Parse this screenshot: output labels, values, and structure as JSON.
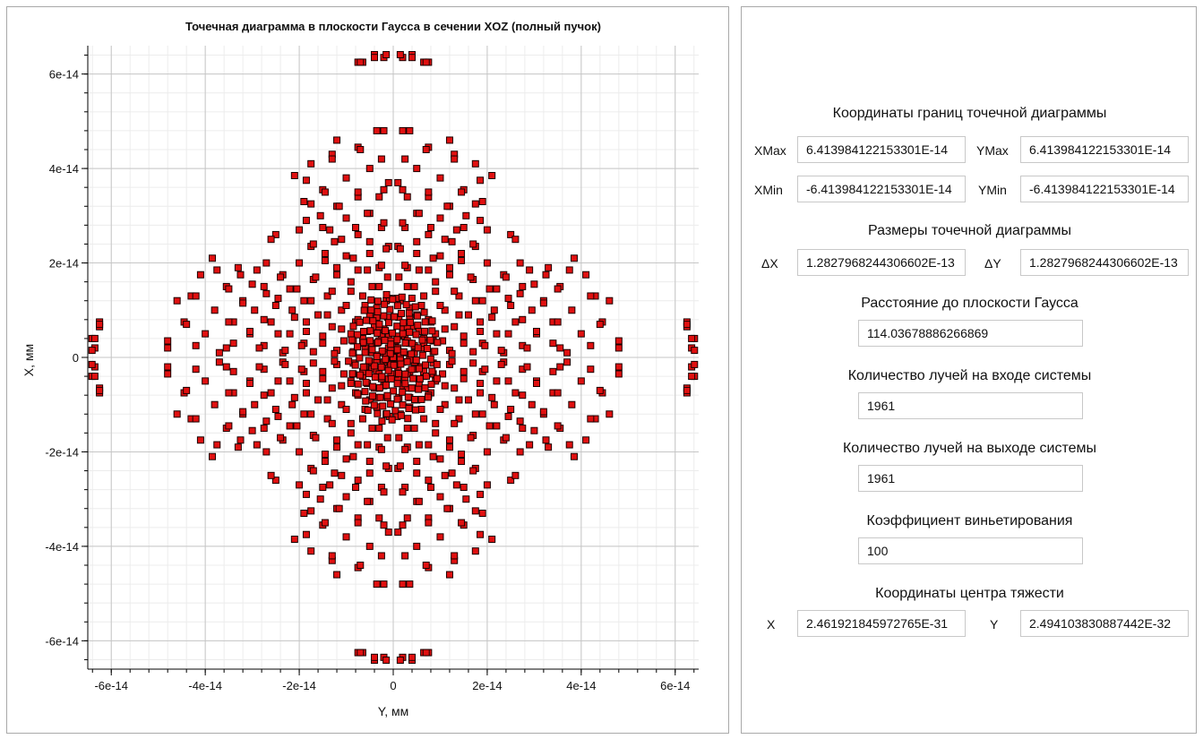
{
  "chart_data": {
    "type": "scatter",
    "title": "Точечная диаграмма в плоскости Гаусса в сечении XOZ (полный пучок)",
    "xlabel": "Y, мм",
    "ylabel": "X, мм",
    "xlim": [
      -6.5e-14,
      6.5e-14
    ],
    "ylim": [
      -6.6e-14,
      6.6e-14
    ],
    "xticks": [
      -6e-14,
      -4e-14,
      -2e-14,
      0,
      2e-14,
      4e-14,
      6e-14
    ],
    "xtick_labels": [
      "-6e-14",
      "-4e-14",
      "-2e-14",
      "0",
      "2e-14",
      "4e-14",
      "6e-14"
    ],
    "yticks": [
      6e-14,
      4e-14,
      2e-14,
      0,
      -2e-14,
      -4e-14,
      -6e-14
    ],
    "ytick_labels": [
      "6e-14",
      "4e-14",
      "2e-14",
      "0",
      "-2e-14",
      "-4e-14",
      "-6e-14"
    ],
    "grid": true,
    "marker": "square",
    "marker_fill": "#e01010",
    "marker_stroke": "#1a0000",
    "symmetry": "four-fold",
    "series": [
      {
        "name": "",
        "points": [
          [
            4e-15,
            6.41e-14
          ],
          [
            7.5e-15,
            6.25e-14
          ],
          [
            -2e-15,
            6.35e-14
          ],
          [
            -6.5e-15,
            6.25e-14
          ],
          [
            3.5e-15,
            4.8e-14
          ],
          [
            7.5e-15,
            4.45e-14
          ],
          [
            1.3e-14,
            4.3e-14
          ],
          [
            1.75e-14,
            4.1e-14
          ],
          [
            2.1e-14,
            3.85e-14
          ],
          [
            5e-15,
            4e-14
          ],
          [
            1e-14,
            3.8e-14
          ],
          [
            1.5e-14,
            3.55e-14
          ],
          [
            2e-15,
            3.55e-14
          ],
          [
            7.5e-15,
            3.4e-14
          ],
          [
            1.2e-14,
            3.2e-14
          ],
          [
            1.9e-14,
            3.3e-14
          ],
          [
            5e-15,
            3.05e-14
          ],
          [
            1e-14,
            2.95e-14
          ],
          [
            1.5e-14,
            2.75e-14
          ],
          [
            2e-14,
            2.7e-14
          ],
          [
            2.5e-14,
            2.6e-14
          ],
          [
            2.5e-15,
            2.75e-14
          ],
          [
            7.5e-15,
            2.6e-14
          ],
          [
            1.25e-14,
            2.45e-14
          ],
          [
            1.75e-14,
            2.35e-14
          ],
          [
            1e-15,
            2.35e-14
          ],
          [
            5e-15,
            2.2e-14
          ],
          [
            1e-14,
            2.15e-14
          ],
          [
            1.45e-14,
            2.05e-14
          ],
          [
            2e-14,
            2e-14
          ],
          [
            3e-15,
            1.9e-14
          ],
          [
            7.5e-15,
            1.85e-14
          ],
          [
            1.2e-14,
            1.75e-14
          ],
          [
            1.7e-14,
            1.65e-14
          ],
          [
            2.4e-14,
            1.7e-14
          ],
          [
            2.9e-14,
            1.85e-14
          ],
          [
            3.25e-14,
            1.75e-14
          ],
          [
            3.75e-14,
            1.85e-14
          ],
          [
            3e-14,
            1.55e-14
          ],
          [
            3.5e-14,
            1.45e-14
          ],
          [
            2.2e-14,
            1.45e-14
          ],
          [
            2.7e-14,
            1.35e-14
          ],
          [
            4.2e-14,
            1.3e-14
          ],
          [
            4.6e-14,
            1.2e-14
          ],
          [
            3.2e-14,
            1.15e-14
          ],
          [
            2.5e-14,
            1.1e-14
          ],
          [
            1.9e-14,
            1.2e-14
          ],
          [
            1.4e-14,
            1.3e-14
          ],
          [
            9e-15,
            1.4e-14
          ],
          [
            4.5e-15,
            1.5e-14
          ],
          [
            1.5e-15,
            1.2e-14
          ],
          [
            6e-15,
            1.1e-14
          ],
          [
            1.1e-14,
            1e-14
          ],
          [
            1.6e-14,
            9e-15
          ],
          [
            2.1e-14,
            8.5e-15
          ],
          [
            2.75e-14,
            8e-15
          ],
          [
            3.5e-14,
            7.5e-15
          ],
          [
            3.05e-14,
            5.5e-15
          ],
          [
            4.4e-14,
            7e-15
          ],
          [
            4.2e-14,
            2.5e-15
          ],
          [
            4.8e-14,
            2e-15
          ],
          [
            6.25e-14,
            7e-15
          ],
          [
            6.35e-14,
            4e-15
          ],
          [
            6.41e-14,
            1.5e-15
          ],
          [
            2.45e-14,
            5e-15
          ],
          [
            1.85e-14,
            5.5e-15
          ],
          [
            1.3e-14,
            6.5e-15
          ],
          [
            8e-15,
            7.5e-15
          ],
          [
            3.5e-15,
            8.5e-15
          ],
          [
            2.5e-15,
            4.5e-15
          ],
          [
            6.5e-15,
            4e-15
          ],
          [
            1.05e-14,
            3.5e-15
          ],
          [
            1.5e-14,
            3e-15
          ],
          [
            1.95e-14,
            2.5e-15
          ],
          [
            2.3e-14,
            1.5e-15
          ],
          [
            2.85e-14,
            2e-15
          ],
          [
            3.4e-14,
            3e-15
          ],
          [
            3.7e-14,
            1e-15
          ],
          [
            1e-15,
            2e-15
          ],
          [
            4.5e-15,
            1e-15
          ],
          [
            8.5e-15,
            1.2e-15
          ],
          [
            1.25e-14,
            8e-16
          ],
          [
            1.7e-14,
            1.2e-15
          ],
          [
            2e-15,
            6e-15
          ],
          [
            5e-16,
            3.5e-15
          ],
          [
            3.5e-15,
            3e-15
          ],
          [
            1.5e-15,
            5e-16
          ],
          [
            3e-15,
            6.5e-15
          ],
          [
            5.5e-15,
            5.5e-15
          ],
          [
            9e-15,
            5e-15
          ]
        ]
      }
    ]
  },
  "info": {
    "bounds_title": "Координаты границ точечной диаграммы",
    "xmax_label": "XMax",
    "xmax_value": "6.413984122153301E-14",
    "ymax_label": "YMax",
    "ymax_value": "6.413984122153301E-14",
    "xmin_label": "XMin",
    "xmin_value": "-6.413984122153301E-14",
    "ymin_label": "YMin",
    "ymin_value": "-6.413984122153301E-14",
    "size_title": "Размеры точечной диаграммы",
    "dx_label": "ΔX",
    "dx_value": "1.2827968244306602E-13",
    "dy_label": "ΔY",
    "dy_value": "1.2827968244306602E-13",
    "distance_title": "Расстояние до плоскости Гаусса",
    "distance_value": "114.03678886266869",
    "rays_in_title": "Количество лучей на входе системы",
    "rays_in_value": "1961",
    "rays_out_title": "Количество лучей на выходе системы",
    "rays_out_value": "1961",
    "vignetting_title": "Коэффициент виньетирования",
    "vignetting_value": "100",
    "centroid_title": "Координаты центра тяжести",
    "cx_label": "X",
    "cx_value": "2.461921845972765E-31",
    "cy_label": "Y",
    "cy_value": "2.494103830887442E-32"
  }
}
